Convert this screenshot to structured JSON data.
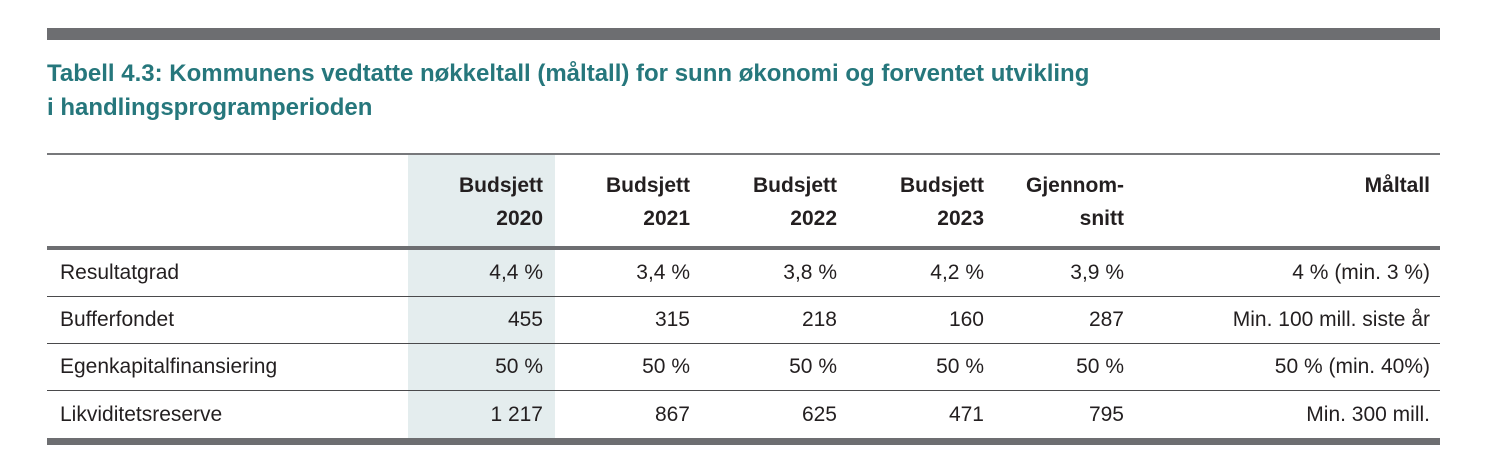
{
  "page": {
    "title_line1": "Tabell 4.3: Kommunens vedtatte nøkkeltall (måltall) for sunn økonomi og forventet utvikling",
    "title_line2": "i handlingsprogramperioden"
  },
  "colors": {
    "title_teal": "#26777c",
    "divider_gray": "#6d6e71",
    "row_line_gray": "#4a4a4c",
    "highlight_column_bg": "#e4edee",
    "text": "#231f20"
  },
  "table": {
    "highlighted_column": "Budsjett 2020",
    "columns": [
      {
        "line1": "",
        "line2": ""
      },
      {
        "line1": "Budsjett",
        "line2": "2020"
      },
      {
        "line1": "Budsjett",
        "line2": "2021"
      },
      {
        "line1": "Budsjett",
        "line2": "2022"
      },
      {
        "line1": "Budsjett",
        "line2": "2023"
      },
      {
        "line1": "Gjennom-",
        "line2": "snitt"
      },
      {
        "line1": "Måltall",
        "line2": ""
      }
    ],
    "rows": [
      {
        "label": "Resultatgrad",
        "values": [
          "4,4 %",
          "3,4 %",
          "3,8 %",
          "4,2 %",
          "3,9 %",
          "4 % (min. 3 %)"
        ]
      },
      {
        "label": "Bufferfondet",
        "values": [
          "455",
          "315",
          "218",
          "160",
          "287",
          "Min. 100 mill. siste år"
        ]
      },
      {
        "label": "Egenkapitalfinansiering",
        "values": [
          "50 %",
          "50 %",
          "50 %",
          "50 %",
          "50 %",
          "50 % (min. 40%)"
        ]
      },
      {
        "label": "Likviditetsreserve",
        "values": [
          "1 217",
          "867",
          "625",
          "471",
          "795",
          "Min. 300 mill."
        ]
      }
    ]
  }
}
